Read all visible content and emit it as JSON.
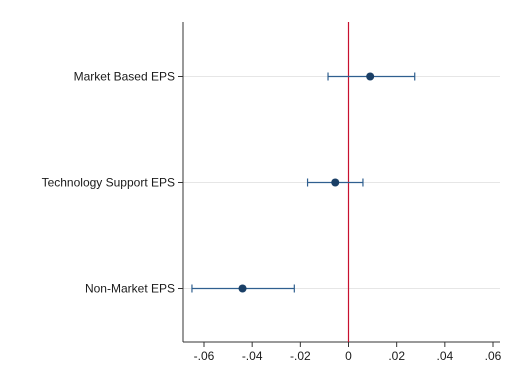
{
  "chart_data": {
    "type": "scatter",
    "subtype": "coefficient-plot",
    "title": "",
    "xlabel": "",
    "ylabel": "",
    "categories": [
      "Market Based EPS",
      "Technology Support EPS",
      "Non-Market EPS"
    ],
    "estimates": [
      {
        "label": "Market Based EPS",
        "value": 0.009,
        "ci_low": -0.0085,
        "ci_high": 0.0275
      },
      {
        "label": "Technology Support EPS",
        "value": -0.0055,
        "ci_low": -0.017,
        "ci_high": 0.006
      },
      {
        "label": "Non-Market EPS",
        "value": -0.044,
        "ci_low": -0.065,
        "ci_high": -0.0225
      }
    ],
    "xlim": [
      -0.07,
      0.065
    ],
    "xticks": [
      -0.06,
      -0.04,
      -0.02,
      0,
      0.02,
      0.04,
      0.06
    ],
    "xtick_labels": [
      "-.06",
      "-.04",
      "-.02",
      "0",
      ".02",
      ".04",
      ".06"
    ],
    "reference_line": {
      "x": 0,
      "color": "#c8102e"
    },
    "marker_color": "#1a3f66",
    "errorbar_color": "#2f5f8f",
    "grid": true,
    "legend": "none"
  }
}
